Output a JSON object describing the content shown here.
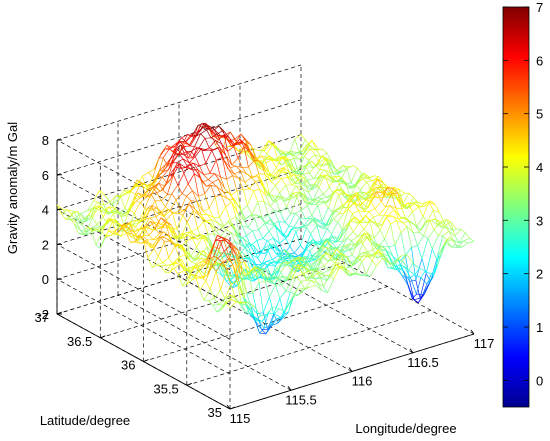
{
  "chart_data": {
    "type": "surface",
    "colormap": "jet",
    "xlabel": "Longitude/degree",
    "ylabel": "Latitude/degree",
    "zlabel": "Gravity anomaly/m Gal",
    "xlim": [
      115,
      117
    ],
    "ylim": [
      35,
      37
    ],
    "zlim": [
      -2,
      8
    ],
    "clim": [
      -0.5,
      7
    ],
    "x_ticks": [
      "115",
      "115.5",
      "116",
      "116.5",
      "117"
    ],
    "x_tick_values": [
      115,
      115.5,
      116,
      116.5,
      117
    ],
    "y_ticks": [
      "35",
      "35.5",
      "36",
      "36.5",
      "37"
    ],
    "y_tick_values": [
      35,
      35.5,
      36,
      36.5,
      37
    ],
    "z_ticks": [
      "-2",
      "0",
      "2",
      "4",
      "6",
      "8"
    ],
    "z_tick_values": [
      -2,
      0,
      2,
      4,
      6,
      8
    ],
    "colorbar_ticks": [
      "0",
      "1",
      "2",
      "3",
      "4",
      "5",
      "6",
      "7"
    ],
    "colorbar_tick_values": [
      0,
      1,
      2,
      3,
      4,
      5,
      6,
      7
    ],
    "grid": true,
    "z_range_of_surface": [
      -0.3,
      7
    ]
  }
}
